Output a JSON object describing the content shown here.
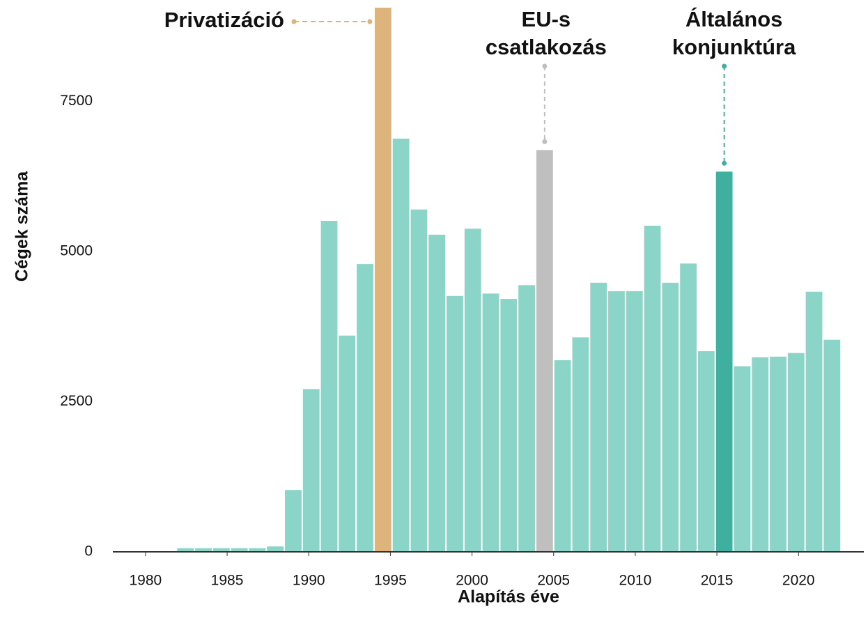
{
  "chart_data": {
    "type": "histogram",
    "xlabel": "Alapítás éve",
    "ylabel": "Cégek száma",
    "bins": [
      1981.9,
      1983.0,
      1984.1,
      1985.2,
      1986.3,
      1987.4,
      1988.5,
      1989.6,
      1990.7,
      1991.8,
      1992.9,
      1994.0,
      1995.1,
      1996.2,
      1997.3,
      1998.4,
      1999.5,
      2000.6,
      2001.7,
      2002.8,
      2003.9,
      2005.0,
      2006.1,
      2007.2,
      2008.3,
      2009.4,
      2010.5,
      2011.6,
      2012.7,
      2013.8,
      2014.9,
      2016.0,
      2017.1,
      2018.2,
      2019.3,
      2020.4,
      2021.5,
      2022.6
    ],
    "values": [
      60,
      60,
      60,
      60,
      60,
      90,
      1030,
      2710,
      5510,
      3600,
      4790,
      9500,
      6880,
      5700,
      5280,
      4260,
      5380,
      4300,
      4210,
      4440,
      6690,
      3190,
      3570,
      4480,
      4340,
      4340,
      5430,
      4480,
      4800,
      3340,
      6330,
      3090,
      3240,
      3250,
      3310,
      4330,
      3530
    ],
    "colors": [
      "#8ad4c8",
      "#8ad4c8",
      "#8ad4c8",
      "#8ad4c8",
      "#8ad4c8",
      "#8ad4c8",
      "#8ad4c8",
      "#8ad4c8",
      "#8ad4c8",
      "#8ad4c8",
      "#8ad4c8",
      "#ddb47c",
      "#8ad4c8",
      "#8ad4c8",
      "#8ad4c8",
      "#8ad4c8",
      "#8ad4c8",
      "#8ad4c8",
      "#8ad4c8",
      "#8ad4c8",
      "#bfbfbf",
      "#8ad4c8",
      "#8ad4c8",
      "#8ad4c8",
      "#8ad4c8",
      "#8ad4c8",
      "#8ad4c8",
      "#8ad4c8",
      "#8ad4c8",
      "#8ad4c8",
      "#3fb0a0",
      "#8ad4c8",
      "#8ad4c8",
      "#8ad4c8",
      "#8ad4c8",
      "#8ad4c8",
      "#8ad4c8"
    ],
    "xlim": [
      1978,
      2024
    ],
    "xticks": [
      1980,
      1985,
      1990,
      1995,
      2000,
      2005,
      2010,
      2015,
      2020
    ],
    "ylim": [
      0,
      9060
    ],
    "yticks": [
      0,
      2500,
      5000,
      7500
    ],
    "annotations": [
      {
        "lines": [
          "Privatizáció"
        ],
        "color": "#ddb47c"
      },
      {
        "lines": [
          "EU-s",
          "csatlakozás"
        ],
        "color": "#bfbfbf"
      },
      {
        "lines": [
          "Általános",
          "konjunktúra"
        ],
        "color": "#3fb0a0"
      }
    ]
  }
}
